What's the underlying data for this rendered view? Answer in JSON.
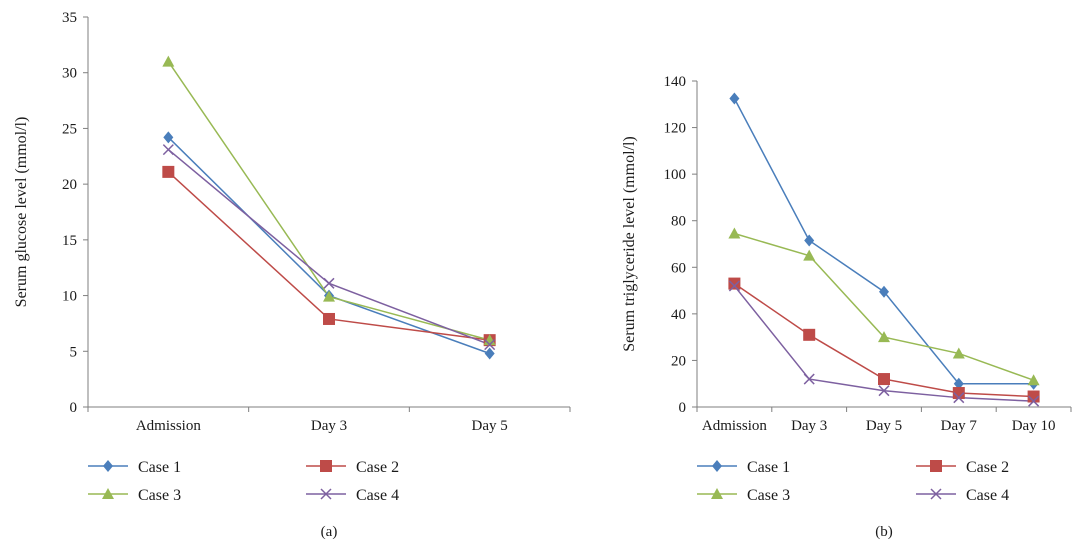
{
  "chart_data": [
    {
      "type": "line",
      "panel_label": "(a)",
      "title": "",
      "xlabel": "",
      "ylabel": "Serum glucose level (mmol/l)",
      "categories": [
        "Admission",
        "Day 3",
        "Day 5"
      ],
      "ylim": [
        0,
        35
      ],
      "yticks": [
        0,
        5,
        10,
        15,
        20,
        25,
        30,
        35
      ],
      "grid": false,
      "legend_position": "bottom",
      "series": [
        {
          "name": "Case 1",
          "values": [
            24.2,
            10,
            4.8
          ],
          "color": "#4a7ebb",
          "marker": "diamond"
        },
        {
          "name": "Case 2",
          "values": [
            21.1,
            7.9,
            6.0
          ],
          "color": "#be4b48",
          "marker": "square"
        },
        {
          "name": "Case 3",
          "values": [
            31.0,
            9.9,
            6.0
          ],
          "color": "#98b954",
          "marker": "triangle"
        },
        {
          "name": "Case 4",
          "values": [
            23.1,
            11.1,
            5.6
          ],
          "color": "#7d60a0",
          "marker": "x"
        }
      ]
    },
    {
      "type": "line",
      "panel_label": "(b)",
      "title": "",
      "xlabel": "",
      "ylabel": "Serum triglyceride level (mmol/l)",
      "categories": [
        "Admission",
        "Day 3",
        "Day 5",
        "Day 7",
        "Day 10"
      ],
      "ylim": [
        0,
        140
      ],
      "yticks": [
        0,
        20,
        40,
        60,
        80,
        100,
        120,
        140
      ],
      "grid": false,
      "legend_position": "bottom",
      "series": [
        {
          "name": "Case 1",
          "values": [
            132.5,
            71.5,
            49.5,
            10,
            10
          ],
          "color": "#4a7ebb",
          "marker": "diamond"
        },
        {
          "name": "Case 2",
          "values": [
            53,
            31,
            12,
            6,
            4.5
          ],
          "color": "#be4b48",
          "marker": "square"
        },
        {
          "name": "Case 3",
          "values": [
            74.5,
            65,
            30,
            23,
            11.5
          ],
          "color": "#98b954",
          "marker": "triangle"
        },
        {
          "name": "Case 4",
          "values": [
            52,
            12,
            7,
            4,
            2.5
          ],
          "color": "#7d60a0",
          "marker": "x"
        }
      ]
    }
  ]
}
